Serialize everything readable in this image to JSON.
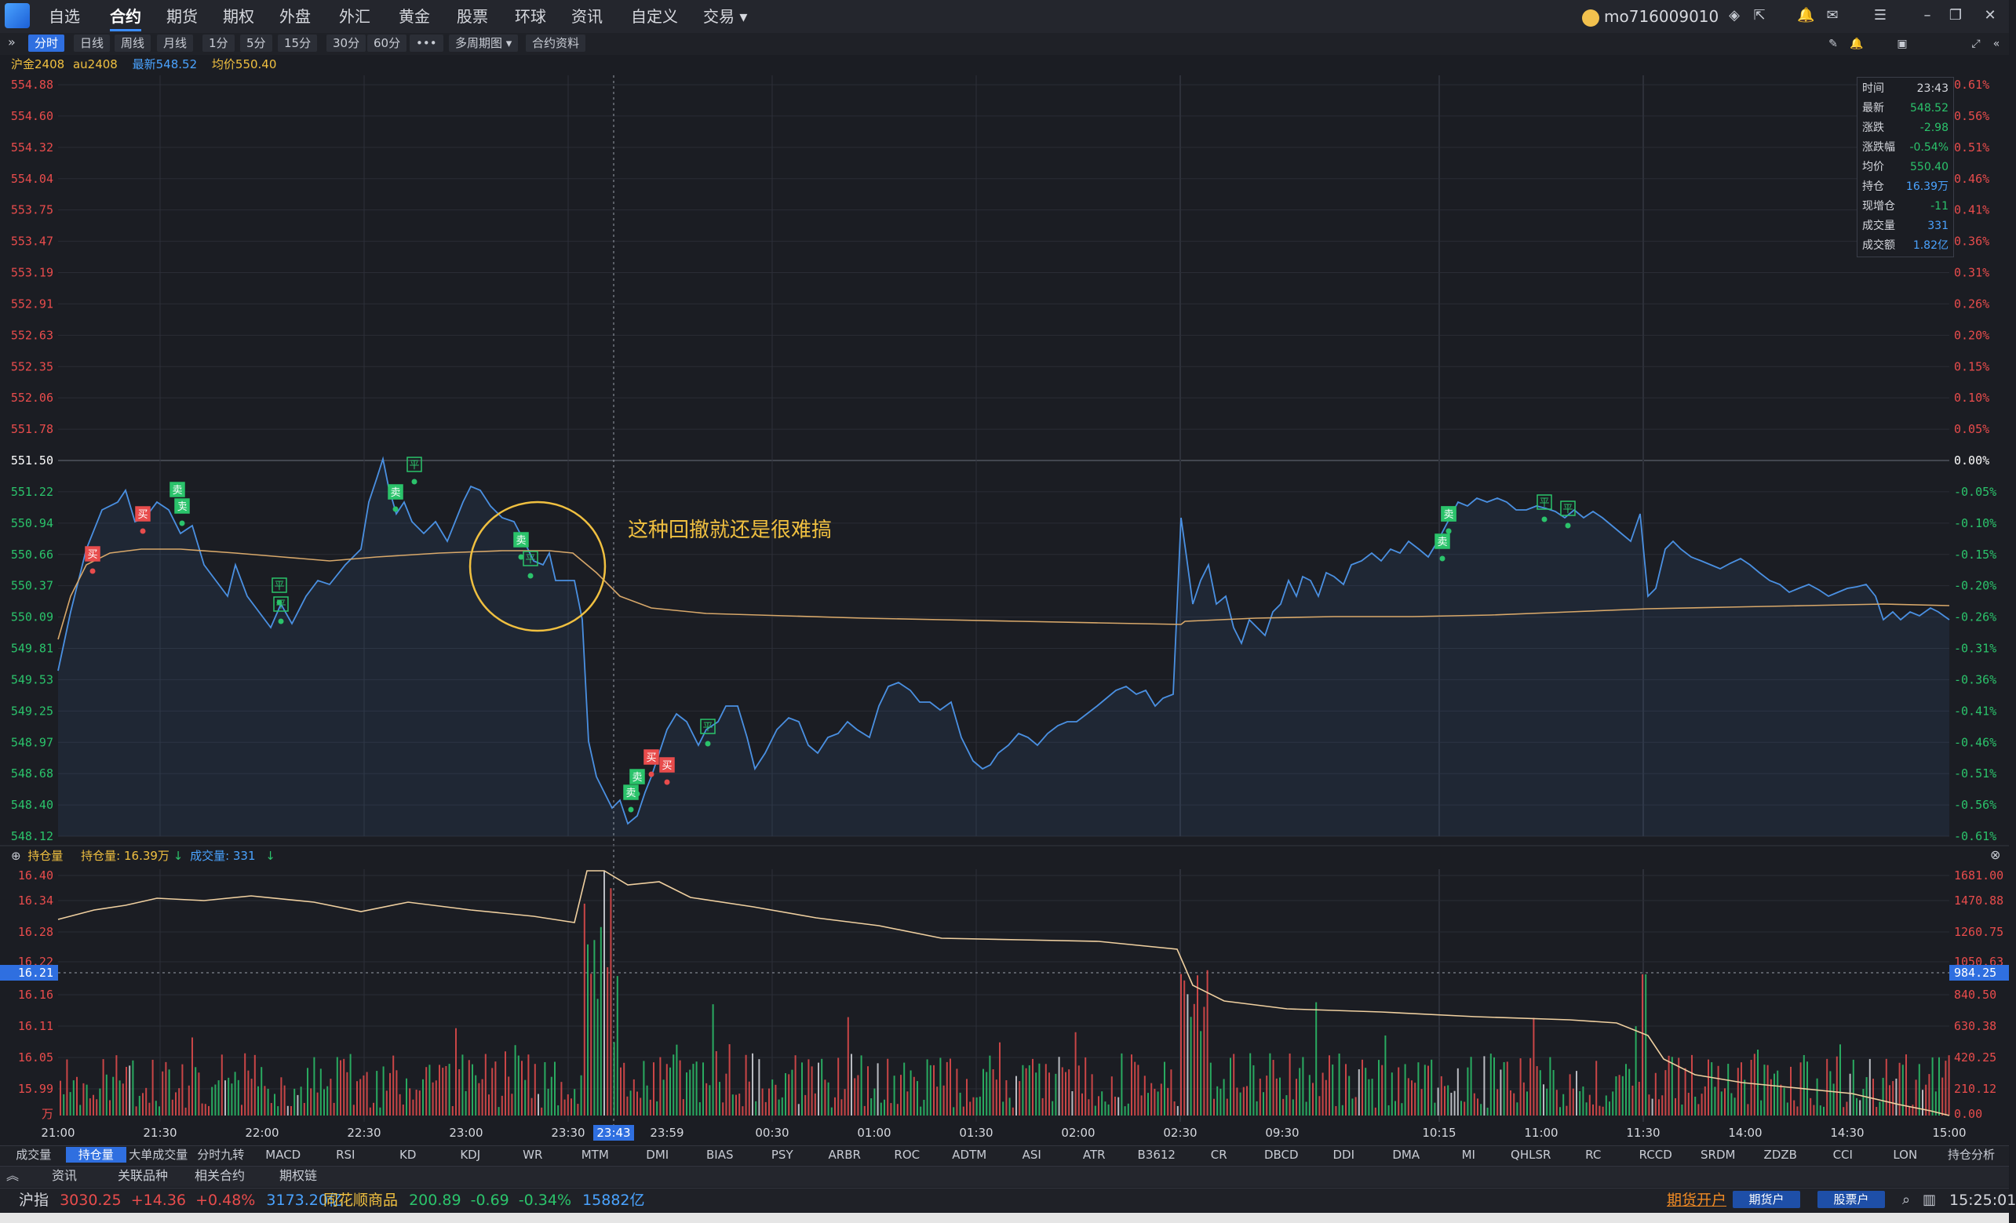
{
  "menu": {
    "items": [
      "自选",
      "合约",
      "期货",
      "期权",
      "外盘",
      "外汇",
      "黄金",
      "股票",
      "环球",
      "资讯",
      "自定义",
      "交易"
    ],
    "active": "合约",
    "user": "mo716009010"
  },
  "toolbar": {
    "periods": [
      "分时",
      "日线",
      "周线",
      "月线",
      "1分",
      "5分",
      "15分",
      "30分",
      "60分"
    ],
    "active": "分时",
    "more": "•••",
    "multi": "多周期图",
    "contract_info": "合约资料"
  },
  "instrument": {
    "name": "沪金2408",
    "code": "au2408",
    "latest_label": "最新548.52",
    "avg_label": "均价550.40"
  },
  "price_axis": {
    "left_labels": [
      "554.88",
      "554.60",
      "554.32",
      "554.04",
      "553.75",
      "553.47",
      "553.19",
      "552.91",
      "552.63",
      "552.35",
      "552.06",
      "551.78",
      "551.50",
      "551.22",
      "550.94",
      "550.66",
      "550.37",
      "550.09",
      "549.81",
      "549.53",
      "549.25",
      "548.97",
      "548.68",
      "548.40",
      "548.12"
    ],
    "right_labels": [
      "0.61%",
      "0.56%",
      "0.51%",
      "0.46%",
      "0.41%",
      "0.36%",
      "0.31%",
      "0.26%",
      "0.20%",
      "0.15%",
      "0.10%",
      "0.05%",
      "0.00%",
      "-0.05%",
      "-0.10%",
      "-0.15%",
      "-0.20%",
      "-0.26%",
      "-0.31%",
      "-0.36%",
      "-0.41%",
      "-0.46%",
      "-0.51%",
      "-0.56%",
      "-0.61%"
    ],
    "colors": {
      "up": "#e84c4c",
      "down": "#2bc36b",
      "flat": "#ffffff"
    }
  },
  "info_box": {
    "rows": [
      {
        "label": "时间",
        "value": "23:43",
        "color": "#d6d8de"
      },
      {
        "label": "最新",
        "value": "548.52",
        "color": "#2bc36b"
      },
      {
        "label": "涨跌",
        "value": "-2.98",
        "color": "#2bc36b"
      },
      {
        "label": "涨跌幅",
        "value": "-0.54%",
        "color": "#2bc36b"
      },
      {
        "label": "均价",
        "value": "550.40",
        "color": "#2bc36b"
      },
      {
        "label": "持仓",
        "value": "16.39万",
        "color": "#4aa3ff"
      },
      {
        "label": "现增仓",
        "value": "-11",
        "color": "#2bc36b"
      },
      {
        "label": "成交量",
        "value": "331",
        "color": "#4aa3ff"
      },
      {
        "label": "成交额",
        "value": "1.82亿",
        "color": "#4aa3ff"
      }
    ]
  },
  "annotation": "这种回撤就还是很难搞",
  "volume_panel": {
    "title": "持仓量",
    "oi_label": "持仓量: 16.39万",
    "vol_label": "成交量: 331",
    "left_labels": [
      "16.40",
      "16.34",
      "16.28",
      "16.22",
      "16.21",
      "16.16",
      "16.11",
      "16.05",
      "15.99",
      "万"
    ],
    "right_labels": [
      "1681.00",
      "1470.88",
      "1260.75",
      "1050.63",
      "984.25",
      "840.50",
      "630.38",
      "420.25",
      "210.12",
      "0.00"
    ]
  },
  "time_axis": [
    "21:00",
    "21:30",
    "22:00",
    "22:30",
    "23:00",
    "23:30",
    "23:43",
    "23:59",
    "00:30",
    "01:00",
    "01:30",
    "02:00",
    "02:30",
    "09:30",
    "10:15",
    "11:00",
    "11:30",
    "14:00",
    "14:30",
    "15:00"
  ],
  "trade_markers": [
    "买",
    "买",
    "卖",
    "卖",
    "平",
    "平",
    "卖",
    "平",
    "卖",
    "平",
    "卖",
    "卖",
    "买",
    "买",
    "平",
    "平",
    "卖",
    "平",
    "平",
    "卖"
  ],
  "indicator_tabs": [
    "成交量",
    "持仓量",
    "大单成交量",
    "分时九转",
    "MACD",
    "RSI",
    "KD",
    "KDJ",
    "WR",
    "MTM",
    "DMI",
    "BIAS",
    "PSY",
    "ARBR",
    "ROC",
    "ADTM",
    "ASI",
    "ATR",
    "B3612",
    "CR",
    "DBCD",
    "DDI",
    "DMA",
    "MI",
    "QHLSR",
    "RC",
    "RCCD",
    "SRDM",
    "ZDZB",
    "CCI",
    "LON"
  ],
  "indicator_active": "持仓量",
  "position_analysis": "持仓分析",
  "sub_tabs": [
    "资讯",
    "关联品种",
    "相关合约",
    "期权链"
  ],
  "status_bar": {
    "index1_name": "沪指",
    "index1_value": "3030.25",
    "index1_change": "+14.36",
    "index1_pct": "+0.48%",
    "index1_amount": "3173.20亿",
    "index2_name": "同花顺商品",
    "index2_value": "200.89",
    "index2_change": "-0.69",
    "index2_pct": "-0.34%",
    "index2_amount": "15882亿",
    "open_account": "期货开户",
    "btn_futures": "期货户",
    "btn_stock": "股票户",
    "clock": "15:25:01"
  }
}
